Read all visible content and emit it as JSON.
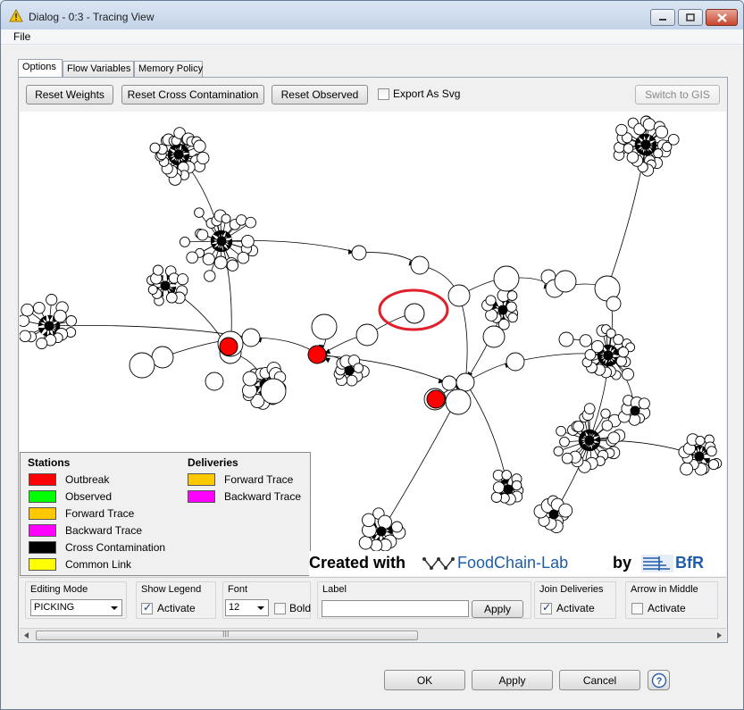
{
  "window": {
    "title": "Dialog - 0:3 - Tracing View"
  },
  "menu": {
    "file": "File"
  },
  "tabs": [
    {
      "label": "Options",
      "active": true
    },
    {
      "label": "Flow Variables",
      "active": false
    },
    {
      "label": "Memory Policy",
      "active": false
    }
  ],
  "toolbar": {
    "reset_weights": "Reset Weights",
    "reset_cross": "Reset Cross Contamination",
    "reset_observed": "Reset Observed",
    "export_svg": "Export As Svg",
    "export_svg_checked": false,
    "switch_gis": "Switch to GIS"
  },
  "legend": {
    "stations_title": "Stations",
    "stations": [
      {
        "label": "Outbreak",
        "color": "#ff0000"
      },
      {
        "label": "Observed",
        "color": "#00ff00"
      },
      {
        "label": "Forward Trace",
        "color": "#ffc800"
      },
      {
        "label": "Backward Trace",
        "color": "#ff00ff"
      },
      {
        "label": "Cross Contamination",
        "color": "#000000"
      },
      {
        "label": "Common Link",
        "color": "#ffff00"
      }
    ],
    "deliveries_title": "Deliveries",
    "deliveries": [
      {
        "label": "Forward Trace",
        "color": "#ffc800"
      },
      {
        "label": "Backward Trace",
        "color": "#ff00ff"
      }
    ]
  },
  "banner": {
    "created_with": "Created with",
    "product": "FoodChain-Lab",
    "by": "by",
    "org": "BfR"
  },
  "controls": {
    "editing_mode_title": "Editing Mode",
    "editing_mode_value": "PICKING",
    "show_legend_title": "Show Legend",
    "show_legend_label": "Activate",
    "show_legend_checked": true,
    "font_title": "Font",
    "font_size": "12",
    "bold_label": "Bold",
    "bold_checked": false,
    "label_title": "Label",
    "label_value": "",
    "label_apply": "Apply",
    "join_title": "Join Deliveries",
    "join_label": "Activate",
    "join_checked": true,
    "arrow_title": "Arrow in Middle",
    "arrow_label": "Activate",
    "arrow_checked": false
  },
  "scrollbar": {
    "grip": "III"
  },
  "buttons": {
    "ok": "OK",
    "apply": "Apply",
    "cancel": "Cancel",
    "help": "?"
  },
  "colors": {
    "outbreak": "#ff0000",
    "highlight": "#e0202a",
    "window_bg": "#f0f0f0"
  }
}
